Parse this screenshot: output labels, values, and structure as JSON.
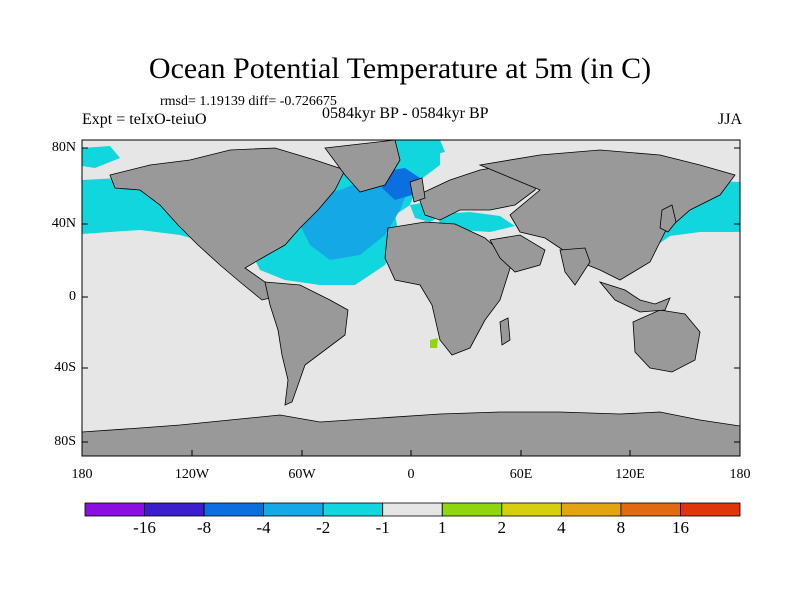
{
  "title": "Ocean Potential Temperature at 5m (in C)",
  "stats": "rmsd= 1.19139 diff= -0.726675",
  "experiment": "Expt = teIxO-teiuO",
  "period": "0584kyr BP - 0584kyr BP",
  "season": "JJA",
  "lat_labels": [
    "80N",
    "40N",
    "0",
    "40S",
    "80S"
  ],
  "lon_labels": [
    "180",
    "120W",
    "60W",
    "0",
    "60E",
    "120E",
    "180"
  ],
  "colorbar": {
    "colors": [
      "#8a0ee0",
      "#3c1ecf",
      "#0c6fe0",
      "#14a9e6",
      "#12d6dd",
      "#e6e6e6",
      "#8fd60f",
      "#d6cf0f",
      "#e3a50f",
      "#e06a0d",
      "#e0340d"
    ],
    "labels": [
      "-16",
      "-8",
      "-4",
      "-2",
      "-1",
      "1",
      "2",
      "4",
      "8",
      "16"
    ]
  },
  "map_colors": {
    "ocean": "#e6e6e6",
    "land": "#999999",
    "cool_light": "#12d6dd",
    "cool_med": "#14a9e6",
    "cool_dark": "#0c6fe0",
    "warm_light": "#8fd60f"
  },
  "chart_data": {
    "type": "heatmap",
    "title": "Ocean Potential Temperature at 5m (in C)",
    "x_range": [
      -180,
      180
    ],
    "y_range": [
      -90,
      90
    ],
    "xticks": [
      -180,
      -120,
      -60,
      0,
      60,
      120,
      180
    ],
    "yticks": [
      80,
      40,
      0,
      -40,
      -80
    ],
    "levels": [
      -16,
      -8,
      -4,
      -2,
      -1,
      1,
      2,
      4,
      8,
      16
    ],
    "notes": "Difference field: mostly within -1..1 (grey), cooling of -1..-4 over North Atlantic and North Pacific margins; Arctic sea-ice regions masked."
  }
}
